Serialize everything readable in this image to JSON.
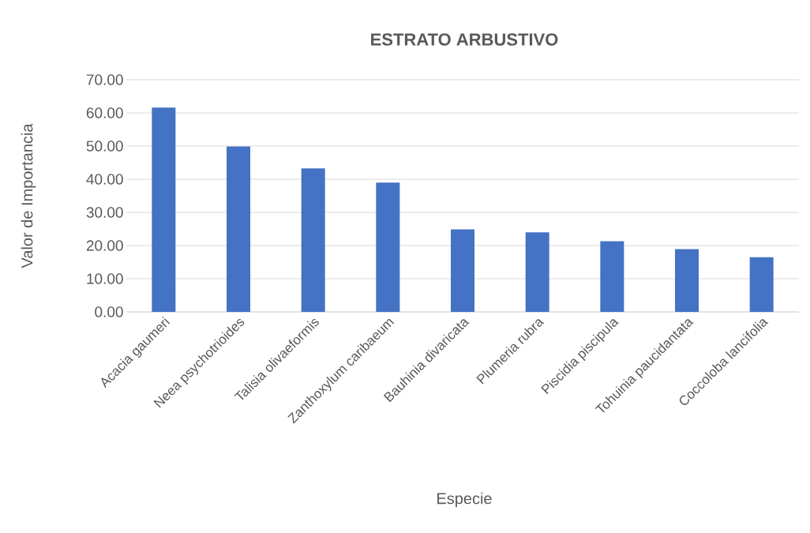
{
  "chart_data": {
    "type": "bar",
    "title": "ESTRATO ARBUSTIVO",
    "xlabel": "Especie",
    "ylabel": "Valor de Importancia",
    "categories": [
      "Acacia gaumeri",
      "Neea psychotrioides",
      "Talisia olivaeformis",
      "Zanthoxylum caribaeum",
      "Bauhinia divaricata",
      "Plumeria rubra",
      "Piscidia piscipula",
      "Tohuinia paucidantata",
      "Coccoloba lancifolia"
    ],
    "values": [
      61.6,
      49.9,
      43.3,
      39.0,
      24.9,
      24.0,
      21.3,
      18.9,
      16.5
    ],
    "color": "#4472c4",
    "ylim": [
      0,
      70
    ],
    "yticks": [
      {
        "value": 0,
        "label": "0.00"
      },
      {
        "value": 10,
        "label": "10.00"
      },
      {
        "value": 20,
        "label": "20.00"
      },
      {
        "value": 30,
        "label": "30.00"
      },
      {
        "value": 40,
        "label": "40.00"
      },
      {
        "value": 50,
        "label": "50.00"
      },
      {
        "value": 60,
        "label": "60.00"
      },
      {
        "value": 70,
        "label": "70.00"
      }
    ],
    "grid": "y"
  }
}
